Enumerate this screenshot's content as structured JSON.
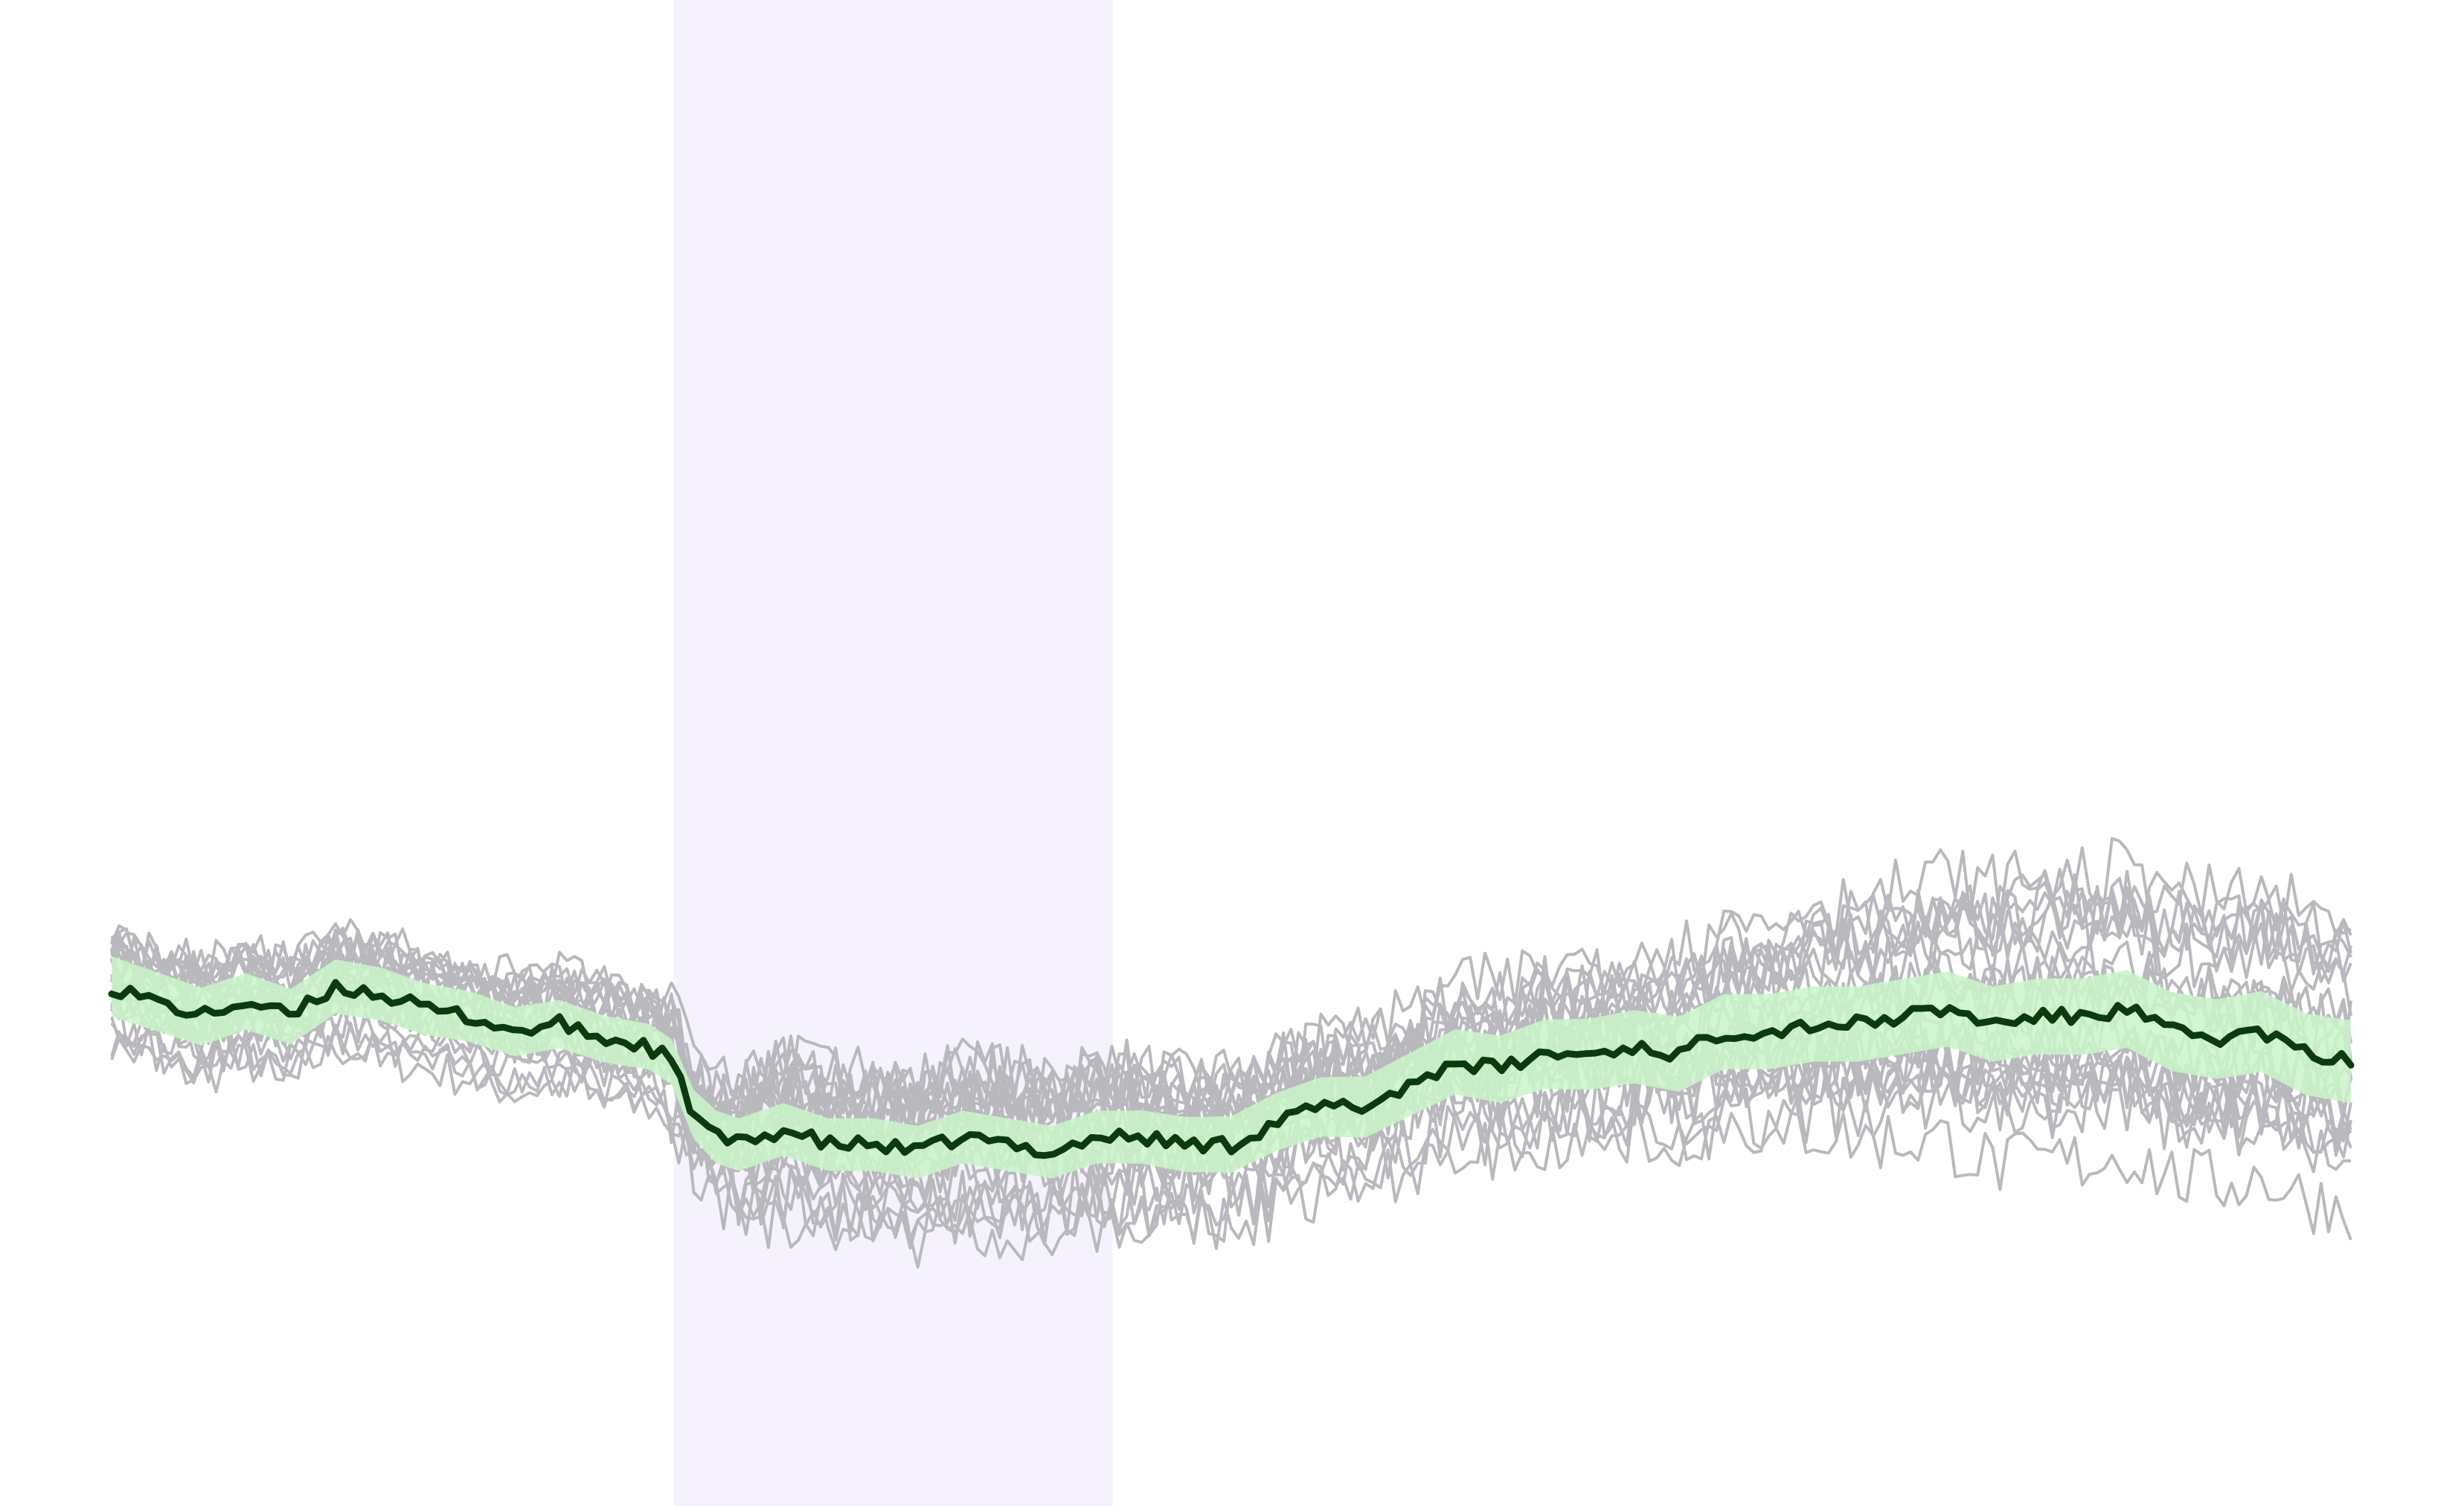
{
  "chart_data": {
    "type": "line",
    "title": "",
    "xlabel": "",
    "ylabel": "",
    "xlim": [
      0,
      100
    ],
    "ylim": [
      -1.0,
      1.0
    ],
    "grid": false,
    "legend": "none",
    "shaded_region": {
      "x_start": 25.1,
      "x_end": 44.7,
      "color": "#f6f2fd"
    },
    "colors": {
      "trials": "#b9b8bd",
      "mean": "#0a3a0e",
      "sem_band": "#c9f5c9",
      "shaded_region": "#f6f2fd"
    },
    "mean_series": {
      "x": [
        0,
        2,
        4,
        6,
        8,
        10,
        12,
        14,
        16,
        18,
        20,
        22,
        24,
        25,
        26,
        27,
        28,
        30,
        32,
        34,
        36,
        38,
        40,
        42,
        44,
        46,
        48,
        50,
        52,
        54,
        56,
        58,
        60,
        62,
        64,
        66,
        68,
        70,
        72,
        74,
        76,
        78,
        80,
        82,
        84,
        86,
        88,
        90,
        92,
        94,
        96,
        98,
        100
      ],
      "y": [
        -0.31,
        -0.33,
        -0.35,
        -0.33,
        -0.35,
        -0.31,
        -0.32,
        -0.34,
        -0.35,
        -0.37,
        -0.36,
        -0.38,
        -0.39,
        -0.41,
        -0.48,
        -0.51,
        -0.52,
        -0.5,
        -0.52,
        -0.52,
        -0.53,
        -0.51,
        -0.52,
        -0.53,
        -0.51,
        -0.51,
        -0.52,
        -0.52,
        -0.49,
        -0.47,
        -0.47,
        -0.44,
        -0.41,
        -0.42,
        -0.4,
        -0.4,
        -0.39,
        -0.4,
        -0.37,
        -0.37,
        -0.36,
        -0.36,
        -0.35,
        -0.34,
        -0.36,
        -0.35,
        -0.35,
        -0.34,
        -0.37,
        -0.38,
        -0.37,
        -0.4,
        -0.41
      ]
    },
    "sem_band_halfwidth": {
      "x": [
        0,
        25,
        27,
        45,
        55,
        70,
        85,
        100
      ],
      "y": [
        0.04,
        0.03,
        0.035,
        0.035,
        0.04,
        0.05,
        0.05,
        0.055
      ]
    },
    "trial_series_count": 24
  }
}
